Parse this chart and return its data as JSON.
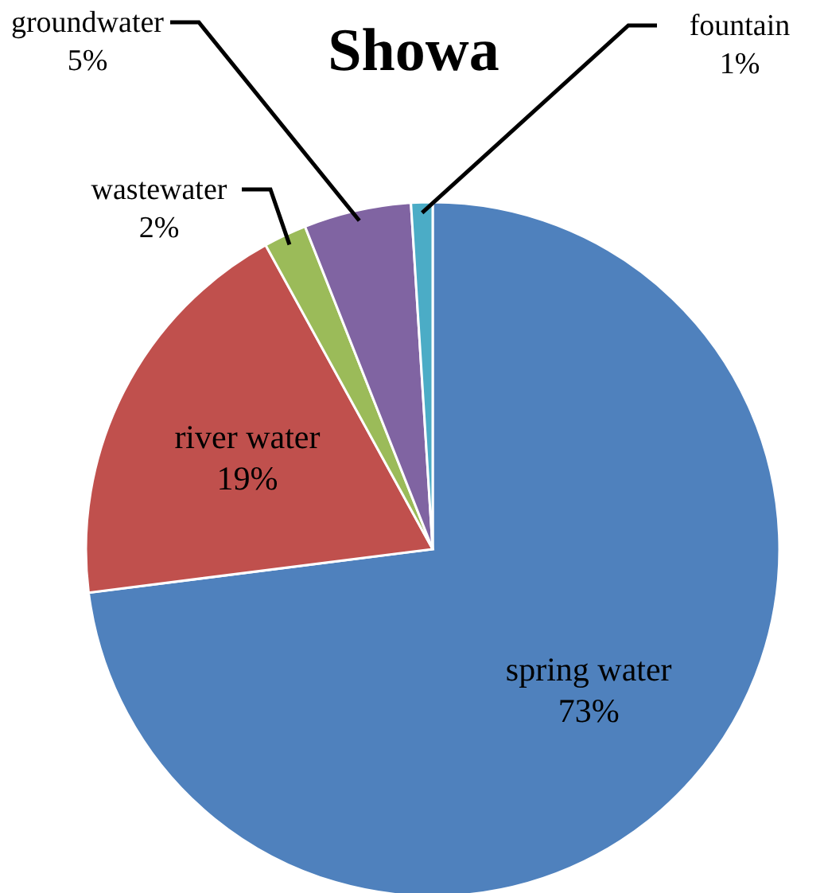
{
  "chart_data": {
    "type": "pie",
    "title": "Showa",
    "categories": [
      "spring water",
      "river water",
      "wastewater",
      "groundwater",
      "fountain"
    ],
    "values": [
      73,
      19,
      2,
      5,
      1
    ],
    "value_labels": [
      "73%",
      "19%",
      "2%",
      "5%",
      "1%"
    ],
    "colors": [
      "#4f81bd",
      "#c0504d",
      "#9bbb59",
      "#8064a2",
      "#4bacc6"
    ]
  }
}
